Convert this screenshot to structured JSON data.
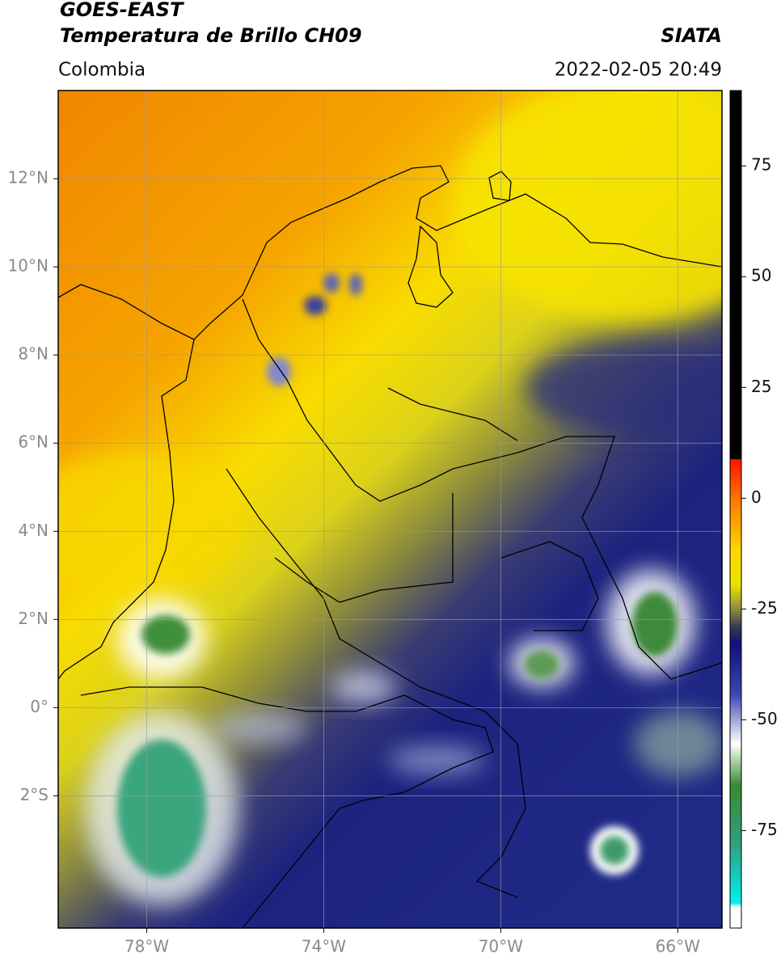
{
  "header": {
    "title": "GOES-EAST",
    "subtitle": "Temperatura de Brillo CH09",
    "source": "SIATA",
    "region": "Colombia",
    "datetime": "2022-02-05 20:49"
  },
  "map": {
    "xlim": [
      -80,
      -65
    ],
    "ylim": [
      -5,
      14
    ],
    "grid": true,
    "xticks": [
      {
        "value": -78,
        "label": "78°W"
      },
      {
        "value": -74,
        "label": "74°W"
      },
      {
        "value": -70,
        "label": "70°W"
      },
      {
        "value": -66,
        "label": "66°W"
      }
    ],
    "yticks": [
      {
        "value": 12,
        "label": "12°N"
      },
      {
        "value": 10,
        "label": "10°N"
      },
      {
        "value": 8,
        "label": "8°N"
      },
      {
        "value": 6,
        "label": "6°N"
      },
      {
        "value": 4,
        "label": "4°N"
      },
      {
        "value": 2,
        "label": "2°N"
      },
      {
        "value": 0,
        "label": "0°"
      },
      {
        "value": -2,
        "label": "2°S"
      }
    ]
  },
  "colorbar": {
    "lim": [
      -97,
      92
    ],
    "ticks": [
      75,
      50,
      25,
      0,
      -25,
      -50,
      -75
    ]
  }
}
